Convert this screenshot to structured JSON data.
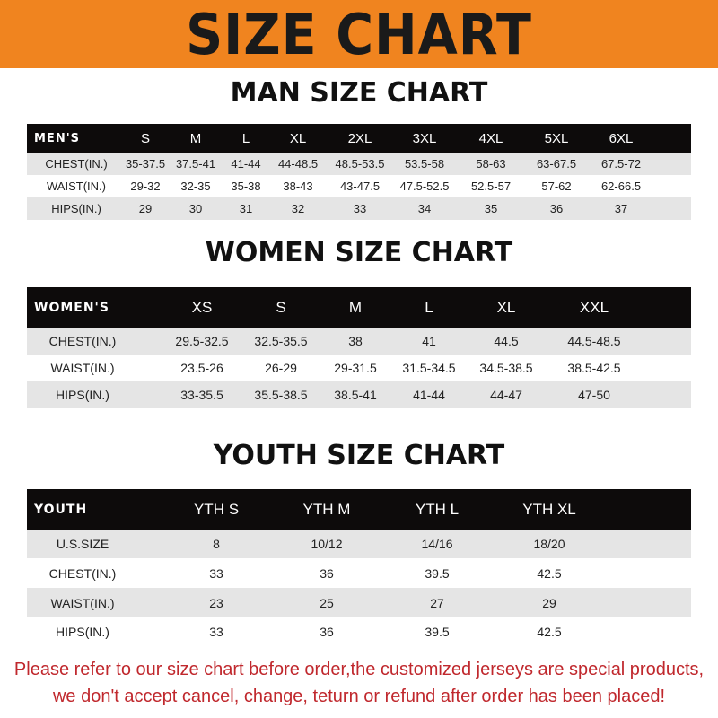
{
  "banner": {
    "title": "SIZE CHART",
    "color": "#f0841f"
  },
  "men": {
    "title": "MAN SIZE CHART",
    "header": [
      "MEN'S",
      "S",
      "M",
      "L",
      "XL",
      "2XL",
      "3XL",
      "4XL",
      "5XL",
      "6XL"
    ],
    "rows": [
      [
        "CHEST(IN.)",
        "35-37.5",
        "37.5-41",
        "41-44",
        "44-48.5",
        "48.5-53.5",
        "53.5-58",
        "58-63",
        "63-67.5",
        "67.5-72"
      ],
      [
        "WAIST(IN.)",
        "29-32",
        "32-35",
        "35-38",
        "38-43",
        "43-47.5",
        "47.5-52.5",
        "52.5-57",
        "57-62",
        "62-66.5"
      ],
      [
        "HIPS(IN.)",
        "29",
        "30",
        "31",
        "32",
        "33",
        "34",
        "35",
        "36",
        "37"
      ]
    ]
  },
  "women": {
    "title": "WOMEN SIZE CHART",
    "header": [
      "WOMEN'S",
      "XS",
      "S",
      "M",
      "L",
      "XL",
      "XXL"
    ],
    "rows": [
      [
        "CHEST(IN.)",
        "29.5-32.5",
        "32.5-35.5",
        "38",
        "41",
        "44.5",
        "44.5-48.5"
      ],
      [
        "WAIST(IN.)",
        "23.5-26",
        "26-29",
        "29-31.5",
        "31.5-34.5",
        "34.5-38.5",
        "38.5-42.5"
      ],
      [
        "HIPS(IN.)",
        "33-35.5",
        "35.5-38.5",
        "38.5-41",
        "41-44",
        "44-47",
        "47-50"
      ]
    ]
  },
  "youth": {
    "title": "YOUTH SIZE CHART",
    "header": [
      "YOUTH",
      "YTH S",
      "YTH M",
      "YTH L",
      "YTH XL"
    ],
    "rows": [
      [
        "U.S.SIZE",
        "8",
        "10/12",
        "14/16",
        "18/20"
      ],
      [
        "CHEST(IN.)",
        "33",
        "36",
        "39.5",
        "42.5"
      ],
      [
        "WAIST(IN.)",
        "23",
        "25",
        "27",
        "29"
      ],
      [
        "HIPS(IN.)",
        "33",
        "36",
        "39.5",
        "42.5"
      ]
    ]
  },
  "notice": {
    "line1": "Please refer to our size chart before order,the customized jerseys are special products,",
    "line2": "we don't accept cancel, change, teturn or refund after order has been placed!",
    "color": "#c0282d"
  }
}
